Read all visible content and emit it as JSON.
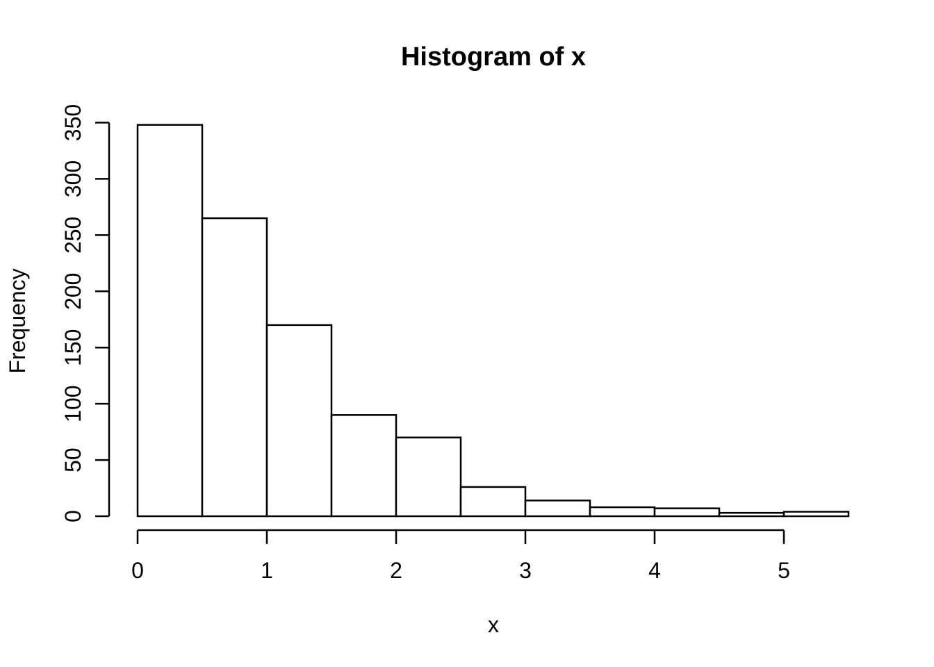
{
  "figure": {
    "background": "#ffffff",
    "foreground": "#000000"
  },
  "chart_data": {
    "type": "bar",
    "subtype": "histogram",
    "title": "Histogram of x",
    "xlabel": "x",
    "ylabel": "Frequency",
    "bin_edges": [
      0,
      0.5,
      1,
      1.5,
      2,
      2.5,
      3,
      3.5,
      4,
      4.5,
      5,
      5.5
    ],
    "counts": [
      348,
      265,
      170,
      90,
      70,
      26,
      14,
      8,
      7,
      3,
      4
    ],
    "x_ticks": [
      0,
      1,
      2,
      3,
      4,
      5
    ],
    "y_ticks": [
      0,
      50,
      100,
      150,
      200,
      250,
      300,
      350
    ],
    "xlim": [
      0,
      5.5
    ],
    "ylim": [
      0,
      350
    ],
    "grid": "off",
    "legend": "none",
    "bar_fill": "#ffffff",
    "bar_stroke": "#000000",
    "axis_color": "#000000"
  }
}
